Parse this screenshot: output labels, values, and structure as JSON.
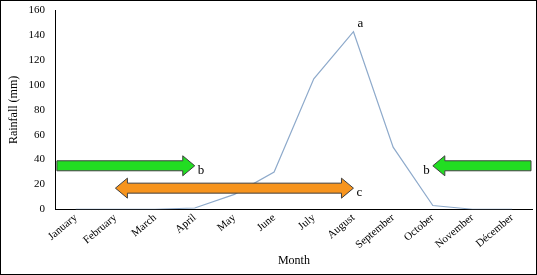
{
  "chart_data": {
    "type": "line",
    "categories": [
      "January",
      "February",
      "March",
      "April",
      "May",
      "June",
      "July",
      "August",
      "September",
      "October",
      "November",
      "Décember"
    ],
    "values": [
      0,
      0,
      0,
      1,
      12,
      30,
      105,
      143,
      50,
      3,
      0,
      0
    ],
    "color": "#8eaacb",
    "ylim": [
      0,
      160
    ],
    "yticks": [
      0,
      20,
      40,
      60,
      80,
      100,
      120,
      140,
      160
    ],
    "grid": false,
    "y_label": "Rainfall (mm)",
    "x_label": "Month",
    "annotations": [
      {
        "text": "a",
        "at": "August",
        "y": 143
      },
      {
        "text": "b",
        "from": "January",
        "to": "April",
        "y": 35,
        "color": "#22dd22",
        "marker": "arrow"
      },
      {
        "text": "b",
        "from": "Décember",
        "to": "October",
        "y": 35,
        "color": "#22dd22",
        "marker": "arrow"
      },
      {
        "text": "c",
        "from": "February",
        "to": "August",
        "y": 17,
        "color": "#f7941d",
        "marker": "double_arrow"
      }
    ]
  }
}
